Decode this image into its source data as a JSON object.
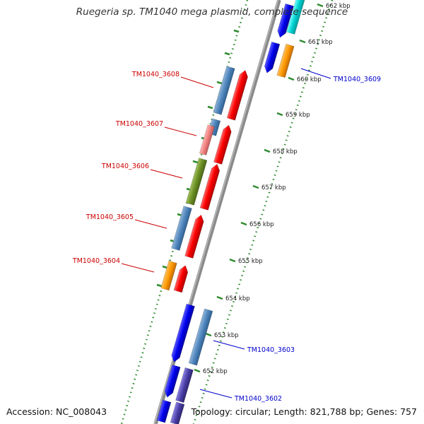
{
  "title": "Ruegeria sp. TM1040 mega plasmid, complete sequence",
  "accession": "Accession: NC_008043",
  "topology": "Topology: circular; Length: 821,788 bp; Genes: 757",
  "colors": {
    "backbone": "#8a8a8a",
    "gc_dots": "#2e8b2e",
    "label_left": "#cc0000",
    "label_right": "#0000cc"
  },
  "ticks": [
    {
      "label": "662 kbp"
    },
    {
      "label": "661 kbp"
    },
    {
      "label": "660 kbp"
    },
    {
      "label": "659 kbp"
    },
    {
      "label": "658 kbp"
    },
    {
      "label": "657 kbp"
    },
    {
      "label": "656 kbp"
    },
    {
      "label": "655 kbp"
    },
    {
      "label": "654 kbp"
    },
    {
      "label": "653 kbp"
    },
    {
      "label": "652 kbp"
    }
  ],
  "gene_labels": [
    {
      "text": "TM1040_3609",
      "side": "right"
    },
    {
      "text": "TM1040_3608",
      "side": "left"
    },
    {
      "text": "TM1040_3607",
      "side": "left"
    },
    {
      "text": "TM1040_3606",
      "side": "left"
    },
    {
      "text": "TM1040_3605",
      "side": "left"
    },
    {
      "text": "TM1040_3604",
      "side": "left"
    },
    {
      "text": "TM1040_3603",
      "side": "right"
    },
    {
      "text": "TM1040_3602",
      "side": "right"
    }
  ]
}
